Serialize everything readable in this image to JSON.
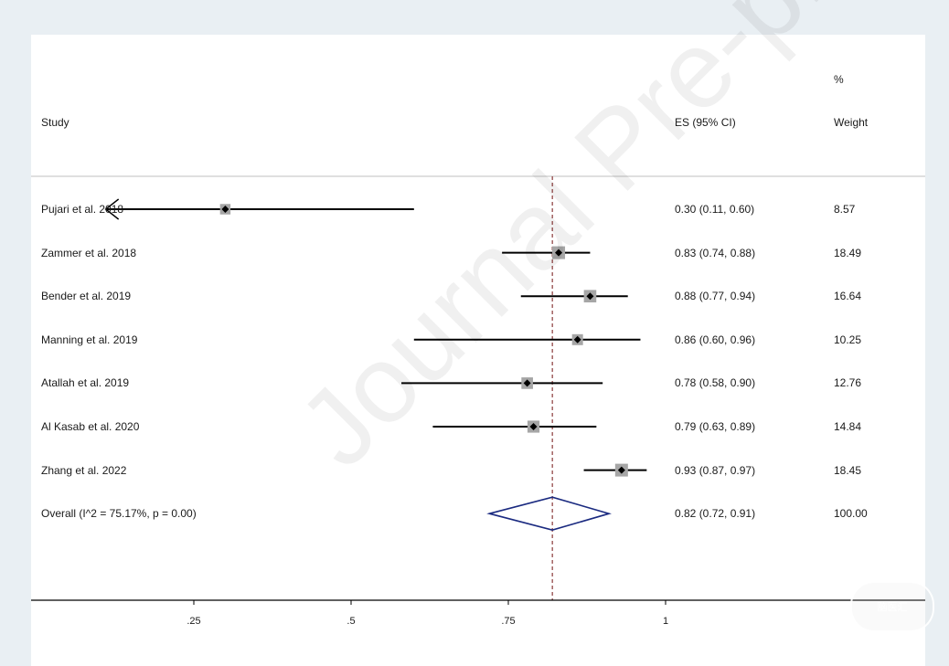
{
  "chart_data": {
    "type": "forest",
    "header": {
      "study_label": "Study",
      "es_label": "ES (95% CI)",
      "weight_label_top": "%",
      "weight_label": "Weight"
    },
    "studies": [
      {
        "name": "Pujari et al. 2018",
        "es": 0.3,
        "lo": 0.11,
        "hi": 0.6,
        "es_text": "0.30 (0.11, 0.60)",
        "weight": "8.57",
        "truncated_left": true
      },
      {
        "name": "Zammer et al. 2018",
        "es": 0.83,
        "lo": 0.74,
        "hi": 0.88,
        "es_text": "0.83 (0.74, 0.88)",
        "weight": "18.49"
      },
      {
        "name": "Bender et al. 2019",
        "es": 0.88,
        "lo": 0.77,
        "hi": 0.94,
        "es_text": "0.88 (0.77, 0.94)",
        "weight": "16.64"
      },
      {
        "name": "Manning et al. 2019",
        "es": 0.86,
        "lo": 0.6,
        "hi": 0.96,
        "es_text": "0.86 (0.60, 0.96)",
        "weight": "10.25"
      },
      {
        "name": "Atallah et al. 2019",
        "es": 0.78,
        "lo": 0.58,
        "hi": 0.9,
        "es_text": "0.78 (0.58, 0.90)",
        "weight": "12.76"
      },
      {
        "name": "Al Kasab et al. 2020",
        "es": 0.79,
        "lo": 0.63,
        "hi": 0.89,
        "es_text": "0.79 (0.63, 0.89)",
        "weight": "14.84"
      },
      {
        "name": "Zhang et al. 2022",
        "es": 0.93,
        "lo": 0.87,
        "hi": 0.97,
        "es_text": "0.93 (0.87, 0.97)",
        "weight": "18.45"
      }
    ],
    "overall": {
      "name": "Overall  (I^2 = 75.17%, p = 0.00)",
      "es": 0.82,
      "lo": 0.72,
      "hi": 0.91,
      "es_text": "0.82 (0.72, 0.91)",
      "weight": "100.00"
    },
    "x_ticks": [
      0.25,
      0.5,
      0.75,
      1
    ],
    "x_tick_labels": [
      ".25",
      ".5",
      ".75",
      "1"
    ],
    "xlim": [
      0,
      1
    ],
    "reference_line": 0.82,
    "colors": {
      "ci_line": "#000000",
      "weight_box": "#a6a6a6",
      "point": "#000000",
      "overall_diamond": "#1a2a80",
      "reference_line": "#8b3a3a",
      "axis": "#000000",
      "header_rule": "#bfbfbf"
    }
  },
  "watermark": "Journal Pre-proof",
  "logo_text": "脑医汇"
}
